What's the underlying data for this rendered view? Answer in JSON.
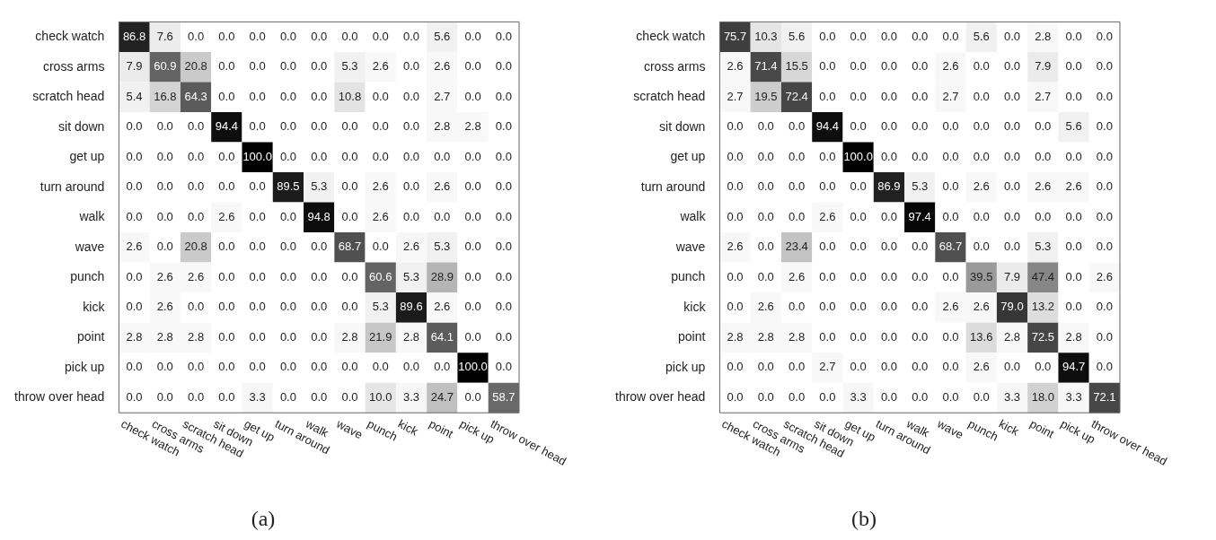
{
  "chart_data": [
    {
      "type": "heatmap",
      "title": "(a)",
      "cell_labels": [
        [
          "86.8",
          "7.6",
          "0.0",
          "0.0",
          "0.0",
          "0.0",
          "0.0",
          "0.0",
          "0.0",
          "0.0",
          "5.6",
          "0.0",
          "0.0"
        ],
        [
          "7.9",
          "60.9",
          "20.8",
          "0.0",
          "0.0",
          "0.0",
          "0.0",
          "5.3",
          "2.6",
          "0.0",
          "2.6",
          "0.0",
          "0.0"
        ],
        [
          "5.4",
          "16.8",
          "64.3",
          "0.0",
          "0.0",
          "0.0",
          "0.0",
          "10.8",
          "0.0",
          "0.0",
          "2.7",
          "0.0",
          "0.0"
        ],
        [
          "0.0",
          "0.0",
          "0.0",
          "94.4",
          "0.0",
          "0.0",
          "0.0",
          "0.0",
          "0.0",
          "0.0",
          "2.8",
          "2.8",
          "0.0"
        ],
        [
          "0.0",
          "0.0",
          "0.0",
          "0.0",
          "100.0",
          "0.0",
          "0.0",
          "0.0",
          "0.0",
          "0.0",
          "0.0",
          "0.0",
          "0.0"
        ],
        [
          "0.0",
          "0.0",
          "0.0",
          "0.0",
          "0.0",
          "89.5",
          "5.3",
          "0.0",
          "2.6",
          "0.0",
          "2.6",
          "0.0",
          "0.0"
        ],
        [
          "0.0",
          "0.0",
          "0.0",
          "2.6",
          "0.0",
          "0.0",
          "94.8",
          "0.0",
          "2.6",
          "0.0",
          "0.0",
          "0.0",
          "0.0"
        ],
        [
          "2.6",
          "0.0",
          "20.8",
          "0.0",
          "0.0",
          "0.0",
          "0.0",
          "68.7",
          "0.0",
          "2.6",
          "5.3",
          "0.0",
          "0.0"
        ],
        [
          "0.0",
          "2.6",
          "2.6",
          "0.0",
          "0.0",
          "0.0",
          "0.0",
          "0.0",
          "60.6",
          "5.3",
          "28.9",
          "0.0",
          "0.0"
        ],
        [
          "0.0",
          "2.6",
          "0.0",
          "0.0",
          "0.0",
          "0.0",
          "0.0",
          "0.0",
          "5.3",
          "89.6",
          "2.6",
          "0.0",
          "0.0"
        ],
        [
          "2.8",
          "2.8",
          "2.8",
          "0.0",
          "0.0",
          "0.0",
          "0.0",
          "2.8",
          "21.9",
          "2.8",
          "64.1",
          "0.0",
          "0.0"
        ],
        [
          "0.0",
          "0.0",
          "0.0",
          "0.0",
          "0.0",
          "0.0",
          "0.0",
          "0.0",
          "0.0",
          "0.0",
          "0.0",
          "100.0",
          "0.0"
        ],
        [
          "0.0",
          "0.0",
          "0.0",
          "0.0",
          "3.3",
          "0.0",
          "0.0",
          "0.0",
          "10.0",
          "3.3",
          "24.7",
          "0.0",
          "58.7"
        ]
      ],
      "categories": [
        "check watch",
        "cross arms",
        "scratch head",
        "sit down",
        "get up",
        "turn around",
        "walk",
        "wave",
        "punch",
        "kick",
        "point",
        "pick up",
        "throw over head"
      ],
      "y_categories": [
        "check watch",
        "cross arms",
        "scratch head",
        "sit down",
        "get up",
        "turn around",
        "walk",
        "wave",
        "punch",
        "kick",
        "point",
        "pick up",
        "throw over head"
      ],
      "cells": [
        [
          86.8,
          7.6,
          0.0,
          0.0,
          0.0,
          0.0,
          0.0,
          0.0,
          0.0,
          0.0,
          5.6,
          0.0,
          0.0
        ],
        [
          7.9,
          60.9,
          20.8,
          0.0,
          0.0,
          0.0,
          0.0,
          5.3,
          2.6,
          0.0,
          2.6,
          0.0,
          0.0
        ],
        [
          5.4,
          16.8,
          64.3,
          0.0,
          0.0,
          0.0,
          0.0,
          10.8,
          0.0,
          0.0,
          2.7,
          0.0,
          0.0
        ],
        [
          0.0,
          0.0,
          0.0,
          94.4,
          0.0,
          0.0,
          0.0,
          0.0,
          0.0,
          0.0,
          2.8,
          2.8,
          0.0
        ],
        [
          0.0,
          0.0,
          0.0,
          0.0,
          100.0,
          0.0,
          0.0,
          0.0,
          0.0,
          0.0,
          0.0,
          0.0,
          0.0
        ],
        [
          0.0,
          0.0,
          0.0,
          0.0,
          0.0,
          89.5,
          5.3,
          0.0,
          2.6,
          0.0,
          2.6,
          0.0,
          0.0
        ],
        [
          0.0,
          0.0,
          0.0,
          2.6,
          0.0,
          0.0,
          94.8,
          0.0,
          2.6,
          0.0,
          0.0,
          0.0,
          0.0
        ],
        [
          2.6,
          0.0,
          20.8,
          0.0,
          0.0,
          0.0,
          0.0,
          68.7,
          0.0,
          2.6,
          5.3,
          0.0,
          0.0
        ],
        [
          0.0,
          2.6,
          2.6,
          0.0,
          0.0,
          0.0,
          0.0,
          0.0,
          60.6,
          5.3,
          28.9,
          0.0,
          0.0
        ],
        [
          0.0,
          2.6,
          0.0,
          0.0,
          0.0,
          0.0,
          0.0,
          0.0,
          5.3,
          89.6,
          2.6,
          0.0,
          0.0
        ],
        [
          2.8,
          2.8,
          2.8,
          0.0,
          0.0,
          0.0,
          0.0,
          2.8,
          21.9,
          2.8,
          64.1,
          0.0,
          0.0
        ],
        [
          0.0,
          0.0,
          0.0,
          0.0,
          0.0,
          0.0,
          0.0,
          0.0,
          0.0,
          0.0,
          0.0,
          100.0,
          0.0
        ],
        [
          0.0,
          0.0,
          0.0,
          0.0,
          3.3,
          0.0,
          0.0,
          0.0,
          10.0,
          3.3,
          24.7,
          0.0,
          58.7
        ]
      ]
    },
    {
      "type": "heatmap",
      "title": "(b)",
      "cell_labels": [
        [
          "75.7",
          "10.3",
          "5.6",
          "0.0",
          "0.0",
          "0.0",
          "0.0",
          "0.0",
          "5.6",
          "0.0",
          "2.8",
          "0.0",
          "0.0"
        ],
        [
          "2.6",
          "71.4",
          "15.5",
          "0.0",
          "0.0",
          "0.0",
          "0.0",
          "2.6",
          "0.0",
          "0.0",
          "7.9",
          "0.0",
          "0.0"
        ],
        [
          "2.7",
          "19.5",
          "72.4",
          "0.0",
          "0.0",
          "0.0",
          "0.0",
          "2.7",
          "0.0",
          "0.0",
          "2.7",
          "0.0",
          "0.0"
        ],
        [
          "0.0",
          "0.0",
          "0.0",
          "94.4",
          "0.0",
          "0.0",
          "0.0",
          "0.0",
          "0.0",
          "0.0",
          "0.0",
          "5.6",
          "0.0"
        ],
        [
          "0.0",
          "0.0",
          "0.0",
          "0.0",
          "100.0",
          "0.0",
          "0.0",
          "0.0",
          "0.0",
          "0.0",
          "0.0",
          "0.0",
          "0.0"
        ],
        [
          "0.0",
          "0.0",
          "0.0",
          "0.0",
          "0.0",
          "86.9",
          "5.3",
          "0.0",
          "2.6",
          "0.0",
          "2.6",
          "2.6",
          "0.0"
        ],
        [
          "0.0",
          "0.0",
          "0.0",
          "2.6",
          "0.0",
          "0.0",
          "97.4",
          "0.0",
          "0.0",
          "0.0",
          "0.0",
          "0.0",
          "0.0"
        ],
        [
          "2.6",
          "0.0",
          "23.4",
          "0.0",
          "0.0",
          "0.0",
          "0.0",
          "68.7",
          "0.0",
          "0.0",
          "5.3",
          "0.0",
          "0.0"
        ],
        [
          "0.0",
          "0.0",
          "2.6",
          "0.0",
          "0.0",
          "0.0",
          "0.0",
          "0.0",
          "39.5",
          "7.9",
          "47.4",
          "0.0",
          "2.6"
        ],
        [
          "0.0",
          "2.6",
          "0.0",
          "0.0",
          "0.0",
          "0.0",
          "0.0",
          "2.6",
          "2.6",
          "79.0",
          "13.2",
          "0.0",
          "0.0"
        ],
        [
          "2.8",
          "2.8",
          "2.8",
          "0.0",
          "0.0",
          "0.0",
          "0.0",
          "0.0",
          "13.6",
          "2.8",
          "72.5",
          "2.8",
          "0.0"
        ],
        [
          "0.0",
          "0.0",
          "0.0",
          "2.7",
          "0.0",
          "0.0",
          "0.0",
          "0.0",
          "2.6",
          "0.0",
          "0.0",
          "94.7",
          "0.0"
        ],
        [
          "0.0",
          "0.0",
          "0.0",
          "0.0",
          "3.3",
          "0.0",
          "0.0",
          "0.0",
          "0.0",
          "3.3",
          "18.0",
          "3.3",
          "72.1"
        ]
      ],
      "categories": [
        "check watch",
        "cross arms",
        "scratch head",
        "sit down",
        "get up",
        "turn around",
        "walk",
        "wave",
        "punch",
        "kick",
        "point",
        "pick up",
        "throw over head"
      ],
      "y_categories": [
        "check watch",
        "cross arms",
        "scratch head",
        "sit down",
        "get up",
        "turn around",
        "walk",
        "wave",
        "punch",
        "kick",
        "point",
        "pick up",
        "throw over head"
      ],
      "cells": [
        [
          75.7,
          10.3,
          5.6,
          0.0,
          0.0,
          0.0,
          0.0,
          0.0,
          5.6,
          0.0,
          2.8,
          0.0,
          0.0
        ],
        [
          2.6,
          71.4,
          15.5,
          0.0,
          0.0,
          0.0,
          0.0,
          2.6,
          0.0,
          0.0,
          7.9,
          0.0,
          0.0
        ],
        [
          2.7,
          19.5,
          72.4,
          0.0,
          0.0,
          0.0,
          0.0,
          2.7,
          0.0,
          0.0,
          2.7,
          0.0,
          0.0
        ],
        [
          0.0,
          0.0,
          0.0,
          94.4,
          0.0,
          0.0,
          0.0,
          0.0,
          0.0,
          0.0,
          0.0,
          5.6,
          0.0
        ],
        [
          0.0,
          0.0,
          0.0,
          0.0,
          100.0,
          0.0,
          0.0,
          0.0,
          0.0,
          0.0,
          0.0,
          0.0,
          0.0
        ],
        [
          0.0,
          0.0,
          0.0,
          0.0,
          0.0,
          86.9,
          5.3,
          0.0,
          2.6,
          0.0,
          2.6,
          2.6,
          0.0
        ],
        [
          0.0,
          0.0,
          0.0,
          2.6,
          0.0,
          0.0,
          97.4,
          0.0,
          0.0,
          0.0,
          0.0,
          0.0,
          0.0
        ],
        [
          2.6,
          0.0,
          23.4,
          0.0,
          0.0,
          0.0,
          0.0,
          68.7,
          0.0,
          0.0,
          5.3,
          0.0,
          0.0
        ],
        [
          0.0,
          0.0,
          2.6,
          0.0,
          0.0,
          0.0,
          0.0,
          0.0,
          39.5,
          7.9,
          47.4,
          0.0,
          2.6
        ],
        [
          0.0,
          2.6,
          0.0,
          0.0,
          0.0,
          0.0,
          0.0,
          2.6,
          2.6,
          79.0,
          13.2,
          0.0,
          0.0
        ],
        [
          2.8,
          2.8,
          2.8,
          0.0,
          0.0,
          0.0,
          0.0,
          0.0,
          13.6,
          2.8,
          72.5,
          2.8,
          0.0
        ],
        [
          0.0,
          0.0,
          0.0,
          2.7,
          0.0,
          0.0,
          0.0,
          0.0,
          2.6,
          0.0,
          0.0,
          94.7,
          0.0
        ],
        [
          0.0,
          0.0,
          0.0,
          0.0,
          3.3,
          0.0,
          0.0,
          0.0,
          0.0,
          3.3,
          18.0,
          3.3,
          72.1
        ]
      ]
    }
  ]
}
